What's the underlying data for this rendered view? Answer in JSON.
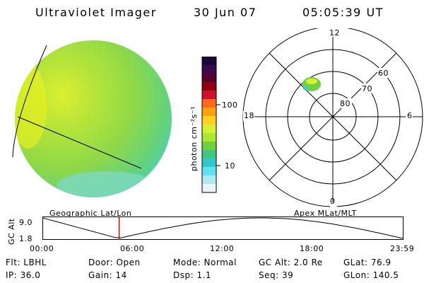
{
  "header": {
    "instrument": "Ultraviolet Imager",
    "date": "30 Jun 07",
    "time": "05:05:39 UT"
  },
  "colorbar": {
    "label": "photon cm⁻²s⁻¹",
    "ticks": [
      "100",
      "10"
    ],
    "colors": [
      "#1a0a3a",
      "#3a0a4a",
      "#5a0030",
      "#900010",
      "#d0102a",
      "#ff6a1a",
      "#ffa010",
      "#ffd020",
      "#d8f030",
      "#a8e830",
      "#70d040",
      "#40c880",
      "#30c8d0",
      "#60e0f0",
      "#b0e8f0",
      "#e8f4f8"
    ]
  },
  "polar": {
    "mlt_labels": {
      "top": "12",
      "left": "18",
      "right": "6",
      "bottom": "0"
    },
    "lat_labels": [
      "80",
      "70",
      "60"
    ]
  },
  "timeline": {
    "left_title": "Geographic Lat/Lon",
    "right_title": "Apex MLat/MLT",
    "y_axis_label": "GC Alt",
    "y_ticks": [
      "9.0",
      "1.8"
    ],
    "x_ticks": [
      "00:00",
      "06:00",
      "12:00",
      "18:00",
      "23:59"
    ],
    "marker_fraction": 0.212,
    "marker_color": "#e00000"
  },
  "info": {
    "flt": "Flt: LBHL",
    "door": "Door: Open",
    "mode": "Mode: Normal",
    "gc_alt": "GC Alt: 2.0 Re",
    "glat": "GLat:  76.9",
    "ip": "IP: 36.0",
    "gain": "Gain: 14",
    "dsp": "Dsp:    1.1",
    "seq": "Seq: 39",
    "glon": "GLon: 140.5"
  }
}
